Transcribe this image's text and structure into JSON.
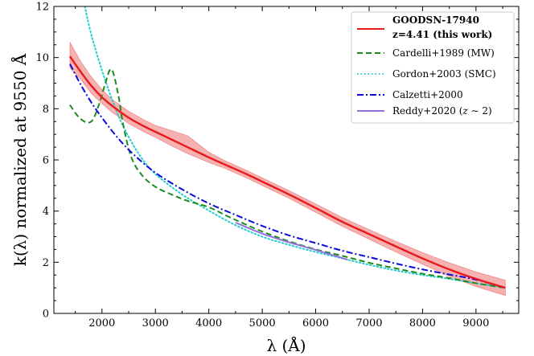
{
  "chart_data": {
    "type": "line",
    "xlabel": "λ (Å)",
    "ylabel": "k(λ) normalized at 9550 Å",
    "xlim": [
      1100,
      9800
    ],
    "ylim": [
      0,
      12
    ],
    "xticks": [
      2000,
      3000,
      4000,
      5000,
      6000,
      7000,
      8000,
      9000
    ],
    "xtick_labels": [
      "2000",
      "3000",
      "4000",
      "5000",
      "6000",
      "7000",
      "8000",
      "9000"
    ],
    "yticks": [
      0,
      2,
      4,
      6,
      8,
      10,
      12
    ],
    "ytick_labels": [
      "0",
      "2",
      "4",
      "6",
      "8",
      "10",
      "12"
    ],
    "legend_position": "top-right",
    "series": [
      {
        "name": "GOODSN-17940 z=4.41 (this work)",
        "legend_lines": [
          "GOODSN-17940",
          "z=4.41 (this work)"
        ],
        "color": "#e8191c",
        "style": "solid",
        "x": [
          1400,
          1600,
          1800,
          2000,
          2200,
          2500,
          2800,
          3000,
          3300,
          3600,
          4000,
          4300,
          4700,
          5000,
          5500,
          6000,
          6500,
          7000,
          7500,
          8000,
          8500,
          9000,
          9550
        ],
        "y": [
          10.05,
          9.45,
          8.9,
          8.45,
          8.1,
          7.65,
          7.3,
          7.1,
          6.8,
          6.5,
          6.1,
          5.82,
          5.45,
          5.15,
          4.65,
          4.12,
          3.58,
          3.1,
          2.62,
          2.15,
          1.72,
          1.35,
          1.0
        ],
        "band_upper": [
          10.6,
          9.85,
          9.25,
          8.75,
          8.35,
          7.9,
          7.55,
          7.35,
          7.15,
          6.95,
          6.3,
          5.97,
          5.6,
          5.3,
          4.8,
          4.28,
          3.75,
          3.28,
          2.82,
          2.38,
          1.98,
          1.62,
          1.3
        ],
        "band_lower": [
          9.6,
          9.15,
          8.6,
          8.2,
          7.85,
          7.42,
          7.08,
          6.88,
          6.55,
          6.25,
          5.9,
          5.67,
          5.3,
          5.0,
          4.5,
          3.95,
          3.4,
          2.9,
          2.4,
          1.92,
          1.45,
          1.05,
          0.7
        ]
      },
      {
        "name": "Cardelli+1989 (MW)",
        "color": "#1d8a1d",
        "style": "dashed",
        "x": [
          1400,
          1600,
          1800,
          1950,
          2050,
          2175,
          2300,
          2400,
          2550,
          2750,
          3000,
          3300,
          3600,
          4000,
          4400,
          5000,
          5500,
          6000,
          6500,
          7000,
          7500,
          8000,
          8500,
          9000,
          9550
        ],
        "y": [
          8.15,
          7.6,
          7.5,
          8.2,
          8.9,
          9.55,
          8.6,
          7.35,
          6.1,
          5.4,
          4.95,
          4.65,
          4.4,
          4.15,
          3.75,
          3.2,
          2.82,
          2.5,
          2.25,
          1.98,
          1.76,
          1.55,
          1.38,
          1.18,
          1.0
        ]
      },
      {
        "name": "Gordon+2003 (SMC)",
        "color": "#1fcfd0",
        "style": "dotted",
        "x": [
          1680,
          1800,
          2000,
          2200,
          2400,
          2700,
          3000,
          3500,
          4000,
          4500,
          5000,
          5500,
          6000,
          6500,
          7000,
          7500,
          8000,
          8500,
          9000,
          9550
        ],
        "y": [
          12.0,
          10.9,
          9.5,
          8.3,
          7.3,
          6.2,
          5.45,
          4.65,
          4.02,
          3.45,
          3.0,
          2.68,
          2.4,
          2.15,
          1.9,
          1.68,
          1.5,
          1.35,
          1.18,
          1.0
        ]
      },
      {
        "name": "Calzetti+2000",
        "color": "#0a0adc",
        "style": "dashdot",
        "x": [
          1400,
          1600,
          1800,
          2000,
          2300,
          2600,
          3000,
          3500,
          4000,
          4500,
          5000,
          5500,
          6000,
          6500,
          7000,
          7500,
          8000,
          8500,
          9000,
          9550
        ],
        "y": [
          9.75,
          8.95,
          8.25,
          7.65,
          6.85,
          6.2,
          5.5,
          4.85,
          4.3,
          3.85,
          3.42,
          3.05,
          2.75,
          2.45,
          2.2,
          1.95,
          1.72,
          1.52,
          1.32,
          1.0
        ]
      },
      {
        "name": "Reddy+2020 (z ~ 2)",
        "legend_main": "Reddy+2020 (",
        "legend_italic": "z",
        "legend_tail": " ∼ 2)",
        "color": "#9370db",
        "style": "solid",
        "x": [
          4500,
          5000,
          5500,
          6000,
          6600
        ],
        "y": [
          3.55,
          3.12,
          2.78,
          2.48,
          2.1
        ]
      }
    ]
  }
}
